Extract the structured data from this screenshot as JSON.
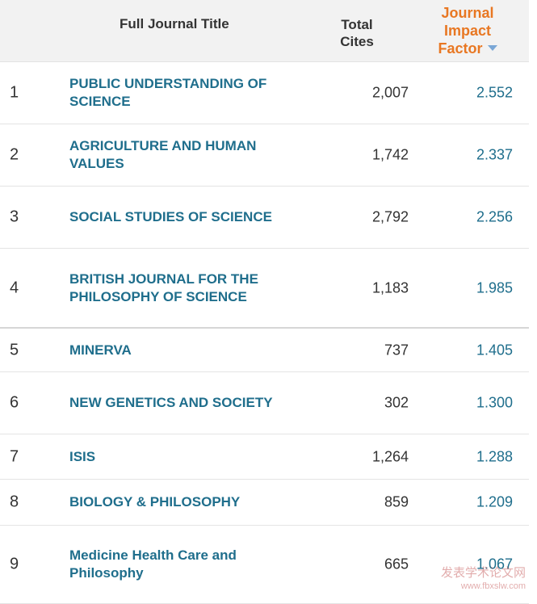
{
  "header": {
    "title_col": "Full Journal Title",
    "cites_col_line1": "Total",
    "cites_col_line2": "Cites",
    "jif_col_line1": "Journal",
    "jif_col_line2": "Impact",
    "jif_col_line3": "Factor",
    "jif_color": "#e87722"
  },
  "rows": [
    {
      "rank": "1",
      "title": "PUBLIC UNDERSTANDING OF SCIENCE",
      "cites": "2,007",
      "jif": "2.552"
    },
    {
      "rank": "2",
      "title": "AGRICULTURE AND HUMAN VALUES",
      "cites": "1,742",
      "jif": "2.337"
    },
    {
      "rank": "3",
      "title": "SOCIAL STUDIES OF SCIENCE",
      "cites": "2,792",
      "jif": "2.256"
    },
    {
      "rank": "4",
      "title": "BRITISH JOURNAL FOR THE PHILOSOPHY OF SCIENCE",
      "cites": "1,183",
      "jif": "1.985"
    },
    {
      "rank": "5",
      "title": "MINERVA",
      "cites": "737",
      "jif": "1.405"
    },
    {
      "rank": "6",
      "title": "NEW GENETICS AND SOCIETY",
      "cites": "302",
      "jif": "1.300"
    },
    {
      "rank": "7",
      "title": "ISIS",
      "cites": "1,264",
      "jif": "1.288"
    },
    {
      "rank": "8",
      "title": "BIOLOGY & PHILOSOPHY",
      "cites": "859",
      "jif": "1.209"
    },
    {
      "rank": "9",
      "title": "Medicine Health Care and Philosophy",
      "cites": "665",
      "jif": "1.067"
    }
  ],
  "watermark": {
    "main": "发表学术论文网",
    "url": "www.fbxslw.com"
  },
  "colors": {
    "link": "#1f6e8c",
    "header_bg": "#f2f2f2"
  }
}
